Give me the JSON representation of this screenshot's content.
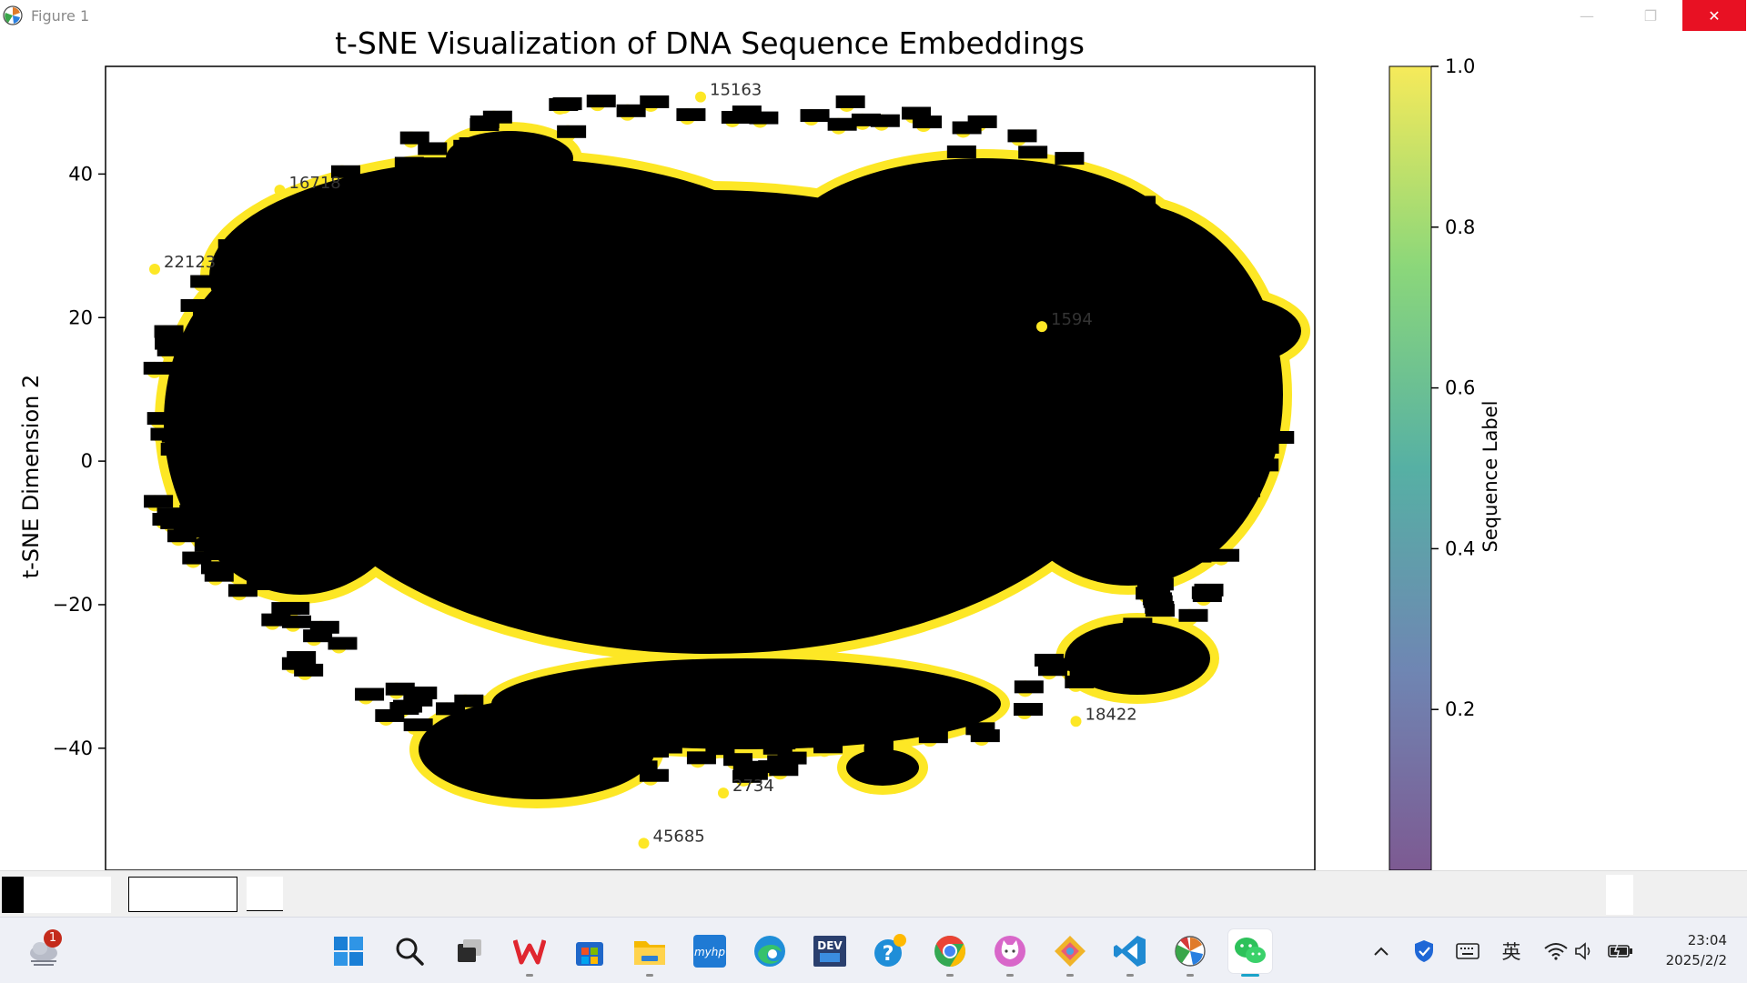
{
  "window": {
    "title": "Figure 1",
    "minimize_glyph": "—",
    "maximize_glyph": "❐",
    "close_glyph": "✕"
  },
  "chart_data": {
    "type": "scatter",
    "title": "t-SNE Visualization of DNA Sequence Embeddings",
    "xlabel": "",
    "ylabel": "t-SNE Dimension 2",
    "ylim": [
      -57,
      55
    ],
    "yticks": [
      40,
      20,
      0,
      -20,
      -40
    ],
    "ytick_labels": [
      "40",
      "20",
      "0",
      "−20",
      "−40"
    ],
    "grid": false,
    "colorbar": {
      "label": "Sequence Label",
      "range": [
        0,
        1.0
      ],
      "ticks": [
        1.0,
        0.8,
        0.6,
        0.4,
        0.2
      ],
      "tick_labels": [
        "1.0",
        "0.8",
        "0.6",
        "0.4",
        "0.2"
      ],
      "colormap": "viridis"
    },
    "point_color": "#fde725",
    "annotation_color": "#000000",
    "visible_annotations": [
      {
        "text": "15163",
        "x": 0,
        "y": 51
      },
      {
        "text": "45685",
        "x": -5,
        "y": -53
      },
      {
        "text": "18422",
        "x": 33,
        "y": -36
      },
      {
        "text": "2734",
        "x": 2,
        "y": -46
      },
      {
        "text": "16718",
        "x": -37,
        "y": 38
      },
      {
        "text": "22123",
        "x": -48,
        "y": 27
      },
      {
        "text": "1594",
        "x": 30,
        "y": 19
      }
    ]
  },
  "taskbar": {
    "weather_badge": "1",
    "apps": [
      {
        "name": "start",
        "icon": "windows-start-icon"
      },
      {
        "name": "search",
        "icon": "search-icon"
      },
      {
        "name": "task-view",
        "icon": "task-view-icon"
      },
      {
        "name": "wps",
        "icon": "wps-office-icon"
      },
      {
        "name": "store",
        "icon": "microsoft-store-icon"
      },
      {
        "name": "explorer",
        "icon": "file-explorer-icon"
      },
      {
        "name": "myhp",
        "icon": "myhp-icon",
        "label": "myhp"
      },
      {
        "name": "edge",
        "icon": "edge-browser-icon"
      },
      {
        "name": "devcpp",
        "icon": "dev-cpp-icon",
        "label": "DEV"
      },
      {
        "name": "help",
        "icon": "help-icon"
      },
      {
        "name": "chrome",
        "icon": "chrome-icon"
      },
      {
        "name": "cat",
        "icon": "cat-app-icon"
      },
      {
        "name": "git",
        "icon": "git-icon"
      },
      {
        "name": "vscode",
        "icon": "vscode-icon"
      },
      {
        "name": "python",
        "icon": "python-figure-icon"
      },
      {
        "name": "wechat",
        "icon": "wechat-icon"
      }
    ],
    "tray": {
      "ime_label": "英",
      "time": "23:04",
      "date": "2025/2/2"
    }
  }
}
